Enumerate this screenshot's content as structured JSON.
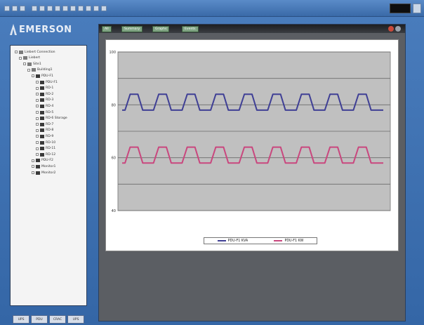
{
  "toolbar": {
    "buttons": [
      "back",
      "forward",
      "refresh",
      "tree",
      "open",
      "save",
      "print",
      "cut",
      "copy",
      "paste",
      "chart",
      "settings",
      "help"
    ]
  },
  "branding": {
    "logo_text": "EMERSON"
  },
  "tree": {
    "items": [
      {
        "label": "Liebert Connection",
        "depth": 0
      },
      {
        "label": "Liebert",
        "depth": 1
      },
      {
        "label": "Site1",
        "depth": 2
      },
      {
        "label": "Building1",
        "depth": 3
      },
      {
        "label": "PDU-F1",
        "depth": 4
      },
      {
        "label": "PDU-F1",
        "depth": 5
      },
      {
        "label": "RD-1",
        "depth": 5
      },
      {
        "label": "RD-2",
        "depth": 5
      },
      {
        "label": "RD-3",
        "depth": 5
      },
      {
        "label": "RD-4",
        "depth": 5
      },
      {
        "label": "RD-5",
        "depth": 5
      },
      {
        "label": "RD-6 Storage",
        "depth": 5
      },
      {
        "label": "RD-7",
        "depth": 5
      },
      {
        "label": "RD-8",
        "depth": 5
      },
      {
        "label": "RD-9",
        "depth": 5
      },
      {
        "label": "RD-10",
        "depth": 5
      },
      {
        "label": "RD-11",
        "depth": 5
      },
      {
        "label": "RD-12",
        "depth": 5
      },
      {
        "label": "PDU-F2",
        "depth": 4
      },
      {
        "label": "Monitor1",
        "depth": 4
      },
      {
        "label": "Monitor2",
        "depth": 4
      }
    ]
  },
  "bottom_tabs": [
    "UPS",
    "PDU",
    "CRAC",
    "UPS"
  ],
  "window": {
    "tabs": [
      "All",
      "Summary",
      "Graphs",
      "Events"
    ]
  },
  "chart_data": {
    "type": "line",
    "title": "",
    "xlabel": "",
    "ylabel": "",
    "y_ticks": [
      "100",
      "80",
      "60",
      "40"
    ],
    "ylim": [
      40,
      100
    ],
    "grid": true,
    "legend": "bottom-center",
    "series": [
      {
        "name": "PDU-F1 KVA",
        "color": "#3f3f95",
        "pattern": "pulse",
        "low": 78,
        "high": 84,
        "cycles": 9
      },
      {
        "name": "PDU-F1 KW",
        "color": "#c9477e",
        "pattern": "pulse",
        "low": 58,
        "high": 64,
        "cycles": 9
      }
    ]
  }
}
